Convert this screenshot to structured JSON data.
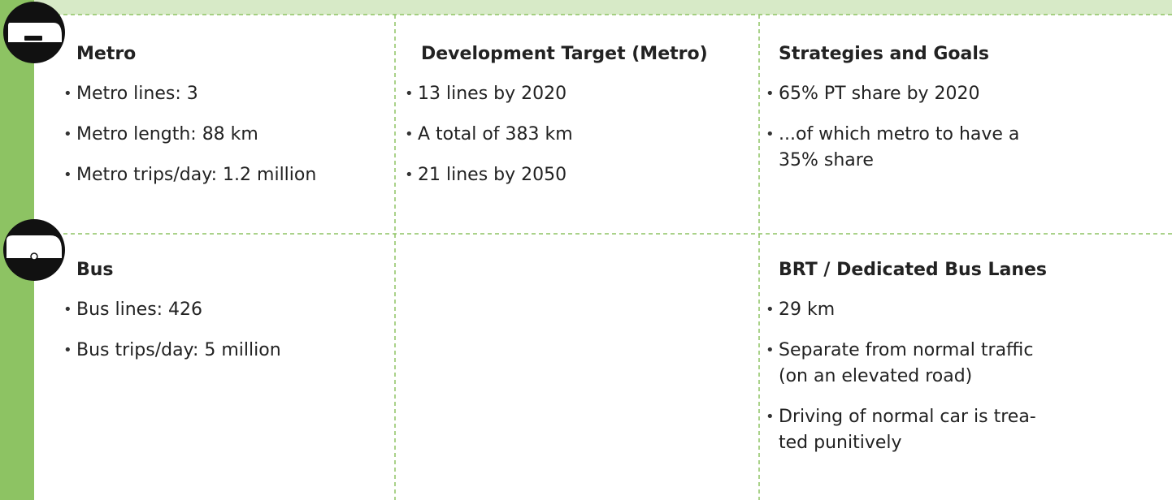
{
  "rows": [
    {
      "cells": [
        {
          "title": "Metro",
          "items": [
            [
              "Metro lines: 3"
            ],
            [
              "Metro length: 88 km"
            ],
            [
              "Metro trips/day: 1.2 million"
            ]
          ]
        },
        {
          "title": "Development Target (Metro)",
          "items": [
            [
              "13 lines by 2020"
            ],
            [
              "A total of 383 km"
            ],
            [
              "21 lines by 2050"
            ]
          ]
        },
        {
          "title": "Strategies and Goals",
          "items": [
            [
              "65% PT share by 2020"
            ],
            [
              "...of which metro to have a",
              "35% share"
            ]
          ]
        }
      ]
    },
    {
      "cells": [
        {
          "title": "Bus",
          "items": [
            [
              "Bus lines: 426"
            ],
            [
              "Bus trips/day: 5 million"
            ]
          ]
        },
        {
          "title": null,
          "items": []
        },
        {
          "title": "BRT / Dedicated Bus Lanes",
          "items": [
            [
              "29 km"
            ],
            [
              "Separate from normal traffic",
              "(on an elevated road)"
            ],
            [
              "Driving of normal car is trea-",
              "ted punitively"
            ]
          ]
        }
      ]
    }
  ]
}
